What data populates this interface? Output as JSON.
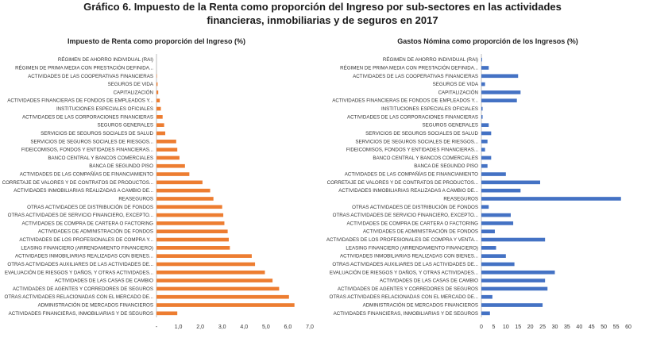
{
  "figure_title_line1": "Gráfico 6. Impuesto de la Renta como proporción del Ingreso por sub-sectores en las actividades",
  "figure_title_line2": "financieras, inmobiliarias y de seguros en 2017",
  "chart_data": [
    {
      "type": "bar",
      "orientation": "horizontal",
      "title": "Impuesto de Renta como proporción del Ingreso (%)",
      "color": "#ED7D31",
      "xlim": [
        0,
        7
      ],
      "ticks": [
        "-",
        "1,0",
        "2,0",
        "3,0",
        "4,0",
        "5,0",
        "6,0",
        "7,0"
      ],
      "tick_values": [
        0,
        1,
        2,
        3,
        4,
        5,
        6,
        7
      ],
      "categories": [
        "RÉGIMEN DE AHORRO INDIVIDUAL (RAI)",
        "RÉGIMEN DE PRIMA MEDIA CON PRESTACIÓN DEFINIDA...",
        "ACTIVIDADES DE LAS COOPERATIVAS FINANCIERAS",
        "SEGUROS DE VIDA",
        "CAPITALIZACIÓN",
        "ACTIVIDADES FINANCIERAS DE FONDOS DE EMPLEADOS Y...",
        "INSTITUCIONES ESPECIALES OFICIALES",
        "ACTIVIDADES DE LAS CORPORACIONES FINANCIERAS",
        "SEGUROS GENERALES",
        "SERVICIOS DE SEGUROS SOCIALES DE SALUD",
        "SERVICIOS DE SEGUROS SOCIALES DE RIESGOS...",
        "FIDEICOMISOS, FONDOS Y ENTIDADES FINANCIERAS...",
        "BANCO CENTRAL Y BANCOS COMERCIALES",
        "BANCA DE SEGUNDO PISO",
        "ACTIVIDADES DE LAS COMPAÑÍAS DE FINANCIAMIENTO",
        "CORRETAJE DE VALORES Y DE CONTRATOS DE PRODUCTOS...",
        "ACTIVIDADES INMOBILIARIAS REALIZADAS A CAMBIO DE...",
        "REASEGUROS",
        "OTRAS ACTIVIDADES DE DISTRIBUCIÓN DE FONDOS",
        "OTRAS ACTIVIDADES DE SERVICIO FINANCIERO, EXCEPTO...",
        "ACTIVIDADES DE COMPRA DE CARTERA O FACTORING",
        "ACTIVIDADES DE ADMINISTRACIÓN DE FONDOS",
        "ACTIVIDADES DE LOS PROFESIONALES DE COMPRA Y...",
        "LEASING FINANCIERO (ARRENDAMIENTO FINANCIERO)",
        "ACTIVIDADES INMOBILIARIAS REALIZADAS CON BIENES...",
        "OTRAS ACTIVIDADES AUXILIARES DE LAS ACTIVIDADES DE...",
        "EVALUACIÓN DE RIESGOS Y DAÑOS, Y OTRAS ACTIVIDADES...",
        "ACTIVIDADES DE LAS CASAS DE CAMBIO",
        "ACTIVIDADES DE AGENTES Y CORREDORES DE SEGUROS",
        "OTRAS ACTIVIDADES RELACIONADAS CON EL MERCADO DE...",
        "ADMINISTRACIÓN DE MERCADOS FINANCIEROS",
        "ACTIVIDADES FINANCIERAS, INMOBILIARIAS Y DE SEGUROS"
      ],
      "values": [
        0.0,
        0.0,
        0.02,
        0.05,
        0.08,
        0.15,
        0.2,
        0.28,
        0.35,
        0.4,
        0.9,
        0.95,
        1.05,
        1.3,
        1.5,
        2.1,
        2.45,
        2.6,
        3.0,
        3.05,
        3.1,
        3.25,
        3.3,
        3.35,
        4.35,
        4.5,
        4.95,
        5.3,
        5.6,
        6.05,
        6.3,
        0.95
      ]
    },
    {
      "type": "bar",
      "orientation": "horizontal",
      "title": "Gastos Nómina como proporción de los Ingresos (%)",
      "color": "#4472C4",
      "xlim": [
        0,
        60
      ],
      "ticks": [
        "0",
        "5",
        "10",
        "15",
        "20",
        "25",
        "30",
        "35",
        "40",
        "45",
        "50",
        "55",
        "60"
      ],
      "tick_values": [
        0,
        5,
        10,
        15,
        20,
        25,
        30,
        35,
        40,
        45,
        50,
        55,
        60
      ],
      "categories": [
        "RÉGIMEN DE AHORRO INDIVIDUAL (RAI)",
        "RÉGIMEN DE PRIMA MEDIA CON PRESTACIÓN DEFINIDA...",
        "ACTIVIDADES DE LAS COOPERATIVAS FINANCIERAS",
        "SEGUROS DE VIDA",
        "CAPITALIZACIÓN",
        "ACTIVIDADES FINANCIERAS DE FONDOS DE EMPLEADOS Y...",
        "INSTITUCIONES ESPECIALES OFICIALES",
        "ACTIVIDADES DE LAS CORPORACIONES FINANCIERAS",
        "SEGUROS GENERALES",
        "SERVICIOS DE SEGUROS SOCIALES DE SALUD",
        "SERVICIOS DE SEGUROS SOCIALES DE RIESGOS...",
        "FIDEICOMISOS, FONDOS Y ENTIDADES FINANCIERAS...",
        "BANCO CENTRAL Y BANCOS COMERCIALES",
        "BANCA DE SEGUNDO PISO",
        "ACTIVIDADES DE LAS COMPAÑÍAS DE FINANCIAMIENTO",
        "CORRETAJE DE VALORES Y DE CONTRATOS DE PRODUCTOS...",
        "ACTIVIDADES INMOBILIARIAS REALIZADAS A CAMBIO DE...",
        "REASEGUROS",
        "OTRAS ACTIVIDADES DE DISTRIBUCIÓN DE FONDOS",
        "OTRAS ACTIVIDADES DE SERVICIO FINANCIERO, EXCEPTO...",
        "ACTIVIDADES DE COMPRA DE CARTERA O FACTORING",
        "ACTIVIDADES DE ADMINISTRACIÓN DE FONDOS",
        "ACTIVIDADES DE LOS PROFESIONALES DE COMPRA Y VENTA...",
        "LEASING FINANCIERO (ARRENDAMIENTO FINANCIERO)",
        "ACTIVIDADES INMOBILIARIAS REALIZADAS CON BIENES...",
        "OTRAS ACTIVIDADES AUXILIARES DE LAS ACTIVIDADES DE...",
        "EVALUACIÓN DE RIESGOS Y DAÑOS, Y OTRAS ACTIVIDADES...",
        "ACTIVIDADES DE LAS CASAS DE CAMBIO",
        "ACTIVIDADES DE AGENTES Y CORREDORES DE SEGUROS",
        "OTRAS ACTIVIDADES RELACIONADAS CON EL MERCADO DE...",
        "ADMINISTRACIÓN DE MERCADOS FINANCIEROS",
        "ACTIVIDADES FINANCIERAS, INMOBILIARIAS Y DE SEGUROS"
      ],
      "values": [
        0.3,
        3.0,
        15.0,
        1.5,
        16.0,
        14.5,
        0.5,
        0.5,
        3.0,
        4.0,
        2.5,
        1.5,
        4.0,
        2.5,
        10.0,
        24.0,
        16.0,
        57.0,
        3.0,
        12.0,
        13.0,
        5.5,
        26.0,
        6.0,
        10.0,
        13.5,
        30.0,
        26.0,
        27.0,
        4.5,
        25.0,
        3.5
      ]
    }
  ]
}
